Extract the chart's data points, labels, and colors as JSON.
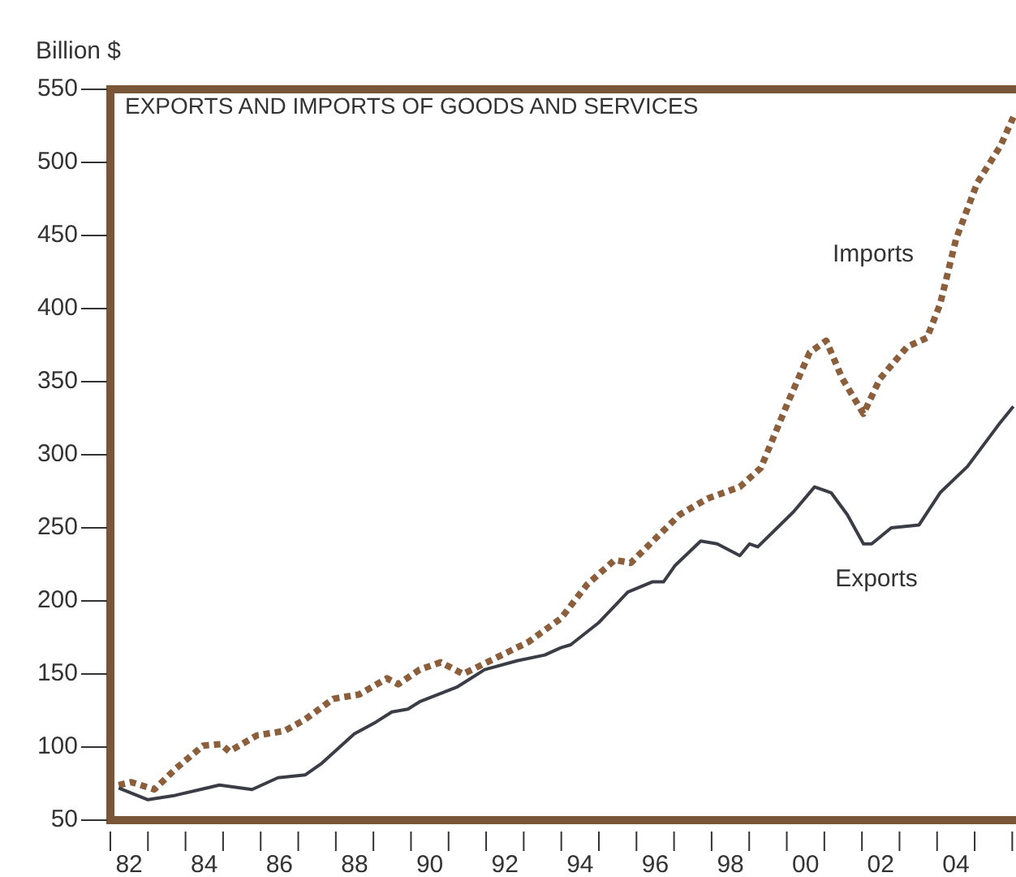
{
  "chart_data": {
    "type": "line",
    "title": "EXPORTS AND IMPORTS OF GOODS AND SERVICES",
    "ylabel": "Billion $",
    "xlim": [
      1981.5,
      2005.6
    ],
    "xticks": [
      {
        "value": 1982,
        "label": "82"
      },
      {
        "value": 1984,
        "label": "84"
      },
      {
        "value": 1986,
        "label": "86"
      },
      {
        "value": 1988,
        "label": "88"
      },
      {
        "value": 1990,
        "label": "90"
      },
      {
        "value": 1992,
        "label": "92"
      },
      {
        "value": 1994,
        "label": "94"
      },
      {
        "value": 1996,
        "label": "96"
      },
      {
        "value": 1998,
        "label": "98"
      },
      {
        "value": 2000,
        "label": "00"
      },
      {
        "value": 2002,
        "label": "02"
      },
      {
        "value": 2004,
        "label": "04"
      }
    ],
    "ylim": [
      50,
      550
    ],
    "yticks": [
      50,
      100,
      150,
      200,
      250,
      300,
      350,
      400,
      450,
      500,
      550
    ],
    "grid": false,
    "series": [
      {
        "name": "Imports",
        "color": "#8b5e3c",
        "line_style": "dotted",
        "x": [
          1981.72,
          1982.06,
          1982.67,
          1983.23,
          1983.97,
          1984.44,
          1984.66,
          1985.4,
          1986.13,
          1986.69,
          1987.43,
          1988.12,
          1988.86,
          1989.16,
          1989.73,
          1990.29,
          1990.89,
          1991.76,
          1992.63,
          1993.49,
          1994.18,
          1994.92,
          1995.35,
          1996.65,
          1997.39,
          1998.25,
          1998.81,
          1999.55,
          2000.11,
          2000.55,
          2000.98,
          2001.54,
          2001.98,
          2002.71,
          2003.23,
          2003.58,
          2004.01,
          2004.57,
          2005.18,
          2005.53
        ],
        "values": [
          74,
          76,
          71,
          85,
          101,
          102,
          97,
          108,
          111,
          119,
          133,
          136,
          147,
          143,
          153,
          158,
          150,
          161,
          172,
          188,
          211,
          228,
          226,
          259,
          270,
          278,
          291,
          337,
          370,
          378,
          352,
          328,
          352,
          374,
          380,
          403,
          448,
          486,
          511,
          531
        ]
      },
      {
        "name": "Exports",
        "color": "#3a3d45",
        "line_style": "solid",
        "x": [
          1981.72,
          1982.5,
          1983.23,
          1984.4,
          1985.27,
          1985.96,
          1986.69,
          1987.13,
          1987.99,
          1988.56,
          1988.99,
          1989.42,
          1989.73,
          1990.72,
          1991.46,
          1992.32,
          1993.06,
          1993.49,
          1993.75,
          1994.49,
          1995.27,
          1995.92,
          1996.22,
          1996.52,
          1997.21,
          1997.65,
          1998.25,
          1998.51,
          1998.73,
          1999.68,
          2000.24,
          2000.68,
          2001.11,
          2001.54,
          2001.76,
          2002.28,
          2003.02,
          2003.58,
          2004.31,
          2005.18,
          2005.53
        ],
        "values": [
          72,
          64,
          67,
          74,
          71,
          79,
          81,
          89,
          109,
          117,
          124,
          126,
          131,
          141,
          153,
          159,
          163,
          168,
          170,
          185,
          206,
          213,
          213,
          224,
          241,
          239,
          231,
          239,
          237,
          261,
          278,
          274,
          259,
          239,
          239,
          250,
          252,
          274,
          292,
          322,
          333
        ]
      }
    ]
  }
}
